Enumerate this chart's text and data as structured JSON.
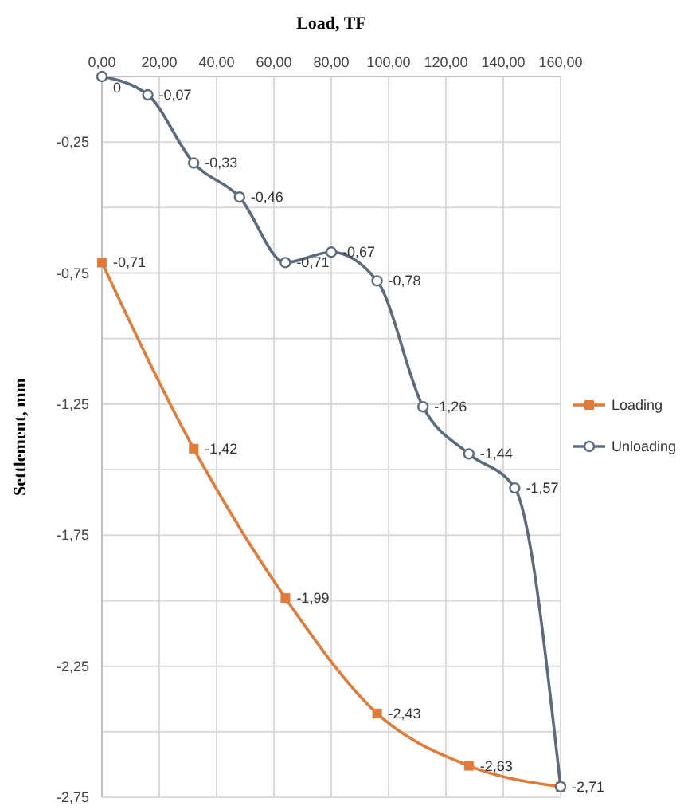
{
  "chart_data": {
    "type": "line",
    "xlabel": "Load, TF",
    "ylabel": "Settlement, mm",
    "xlim": [
      0,
      160
    ],
    "ylim": [
      -2.75,
      0
    ],
    "xticks": [
      {
        "value": 0,
        "label": "0,00"
      },
      {
        "value": 20,
        "label": "20,00"
      },
      {
        "value": 40,
        "label": "40,00"
      },
      {
        "value": 60,
        "label": "60,00"
      },
      {
        "value": 80,
        "label": "80,00"
      },
      {
        "value": 100,
        "label": "100,00"
      },
      {
        "value": 120,
        "label": "120,00"
      },
      {
        "value": 140,
        "label": "140,00"
      },
      {
        "value": 160,
        "label": "160,00"
      }
    ],
    "yticks": [
      {
        "value": -0.25,
        "label": "-0,25"
      },
      {
        "value": -0.5,
        "label": null
      },
      {
        "value": -0.75,
        "label": "-0,75"
      },
      {
        "value": -1,
        "label": null
      },
      {
        "value": -1.25,
        "label": "-1,25"
      },
      {
        "value": -1.5,
        "label": null
      },
      {
        "value": -1.75,
        "label": "-1,75"
      },
      {
        "value": -2,
        "label": null
      },
      {
        "value": -2.25,
        "label": "-2,25"
      },
      {
        "value": -2.5,
        "label": null
      },
      {
        "value": -2.75,
        "label": "-2,75"
      }
    ],
    "grid": true,
    "legend": "right",
    "line_style": "solid",
    "series": [
      {
        "name": "Loading",
        "color": "#e07b39",
        "marker": "square",
        "x": [
          0,
          32,
          64,
          96,
          128,
          160
        ],
        "values": [
          -0.71,
          -1.42,
          -1.99,
          -2.43,
          -2.63,
          -2.71
        ],
        "value_labels": [
          "-0,71",
          "-1,42",
          "-1,99",
          "-2,43",
          "-2,63",
          "-2,71"
        ]
      },
      {
        "name": "Unloading",
        "color": "#5b6b7c",
        "marker": "circle",
        "x": [
          0,
          16,
          32,
          48,
          64,
          80,
          96,
          112,
          128,
          144,
          160
        ],
        "values": [
          0,
          -0.07,
          -0.33,
          -0.46,
          -0.71,
          -0.67,
          -0.78,
          -1.26,
          -1.44,
          -1.57,
          -2.71
        ],
        "value_labels": [
          "0",
          "-0,07",
          "-0,33",
          "-0,46",
          "-0,71",
          "-0,67",
          "-0,78",
          "-1,26",
          "-1,44",
          "-1,57",
          null
        ]
      }
    ]
  }
}
